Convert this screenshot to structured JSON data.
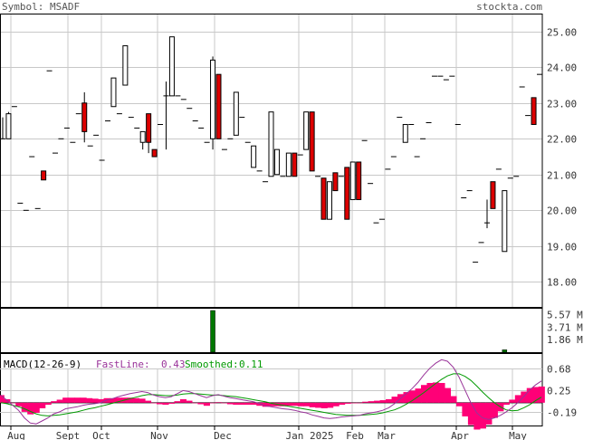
{
  "header": {
    "symbol_label": "Symbol: MSADF",
    "brand": "stockta.com"
  },
  "colors": {
    "up": "#ffffff",
    "down": "#dd0000",
    "grid": "#c8c8c8",
    "volume": "#007700",
    "hist": "#ff0077",
    "fastline": "#993399",
    "smoothed": "#009900"
  },
  "chart_data": [
    {
      "type": "candlestick",
      "panel": "price",
      "y_ticks": [
        "25.00",
        "24.00",
        "23.00",
        "22.00",
        "21.00",
        "20.00",
        "19.00",
        "18.00"
      ],
      "ylim": [
        17.3,
        25.5
      ],
      "x_ticks": [
        "Aug",
        "Sept",
        "Oct",
        "Nov",
        "Dec",
        "Jan 2025",
        "Feb",
        "Mar",
        "Apr",
        "May"
      ],
      "candles": [
        {
          "x": 1,
          "o": 22.0,
          "c": 22.0,
          "h": 22.6,
          "l": 22.0,
          "d": "flat"
        },
        {
          "x": 2,
          "o": 22.0,
          "c": 22.7,
          "h": 22.75,
          "l": 22.0,
          "d": "up"
        },
        {
          "x": 3,
          "o": 22.9,
          "c": 22.9,
          "h": 22.9,
          "l": 22.9,
          "d": "flat"
        },
        {
          "x": 4,
          "o": 20.2,
          "c": 20.2,
          "h": 20.2,
          "l": 20.2,
          "d": "flat"
        },
        {
          "x": 5,
          "o": 20.0,
          "c": 20.0,
          "h": 20.0,
          "l": 20.0,
          "d": "flat"
        },
        {
          "x": 6,
          "o": 21.5,
          "c": 21.5,
          "h": 21.5,
          "l": 21.5,
          "d": "flat"
        },
        {
          "x": 7,
          "o": 20.05,
          "c": 20.05,
          "h": 20.05,
          "l": 20.05,
          "d": "flat"
        },
        {
          "x": 8,
          "o": 21.1,
          "c": 20.85,
          "h": 21.1,
          "l": 20.85,
          "d": "down"
        },
        {
          "x": 9,
          "o": 23.9,
          "c": 23.9,
          "h": 23.9,
          "l": 23.9,
          "d": "flat"
        },
        {
          "x": 10,
          "o": 21.6,
          "c": 21.6,
          "h": 21.6,
          "l": 21.6,
          "d": "flat"
        },
        {
          "x": 11,
          "o": 22.0,
          "c": 22.0,
          "h": 22.0,
          "l": 22.0,
          "d": "flat"
        },
        {
          "x": 12,
          "o": 22.3,
          "c": 22.3,
          "h": 22.3,
          "l": 22.3,
          "d": "flat"
        },
        {
          "x": 13,
          "o": 21.9,
          "c": 21.9,
          "h": 21.9,
          "l": 21.9,
          "d": "flat"
        },
        {
          "x": 14,
          "o": 22.7,
          "c": 22.7,
          "h": 22.7,
          "l": 22.7,
          "d": "flat"
        },
        {
          "x": 15,
          "o": 23.0,
          "c": 22.2,
          "h": 23.3,
          "l": 21.9,
          "d": "down"
        },
        {
          "x": 16,
          "o": 21.8,
          "c": 21.8,
          "h": 21.8,
          "l": 21.8,
          "d": "flat"
        },
        {
          "x": 17,
          "o": 22.1,
          "c": 22.1,
          "h": 22.1,
          "l": 22.1,
          "d": "flat"
        },
        {
          "x": 18,
          "o": 21.4,
          "c": 21.4,
          "h": 21.4,
          "l": 21.4,
          "d": "flat"
        },
        {
          "x": 19,
          "o": 22.5,
          "c": 22.5,
          "h": 22.5,
          "l": 22.5,
          "d": "flat"
        },
        {
          "x": 20,
          "o": 22.9,
          "c": 23.7,
          "h": 23.7,
          "l": 22.9,
          "d": "up"
        },
        {
          "x": 21,
          "o": 22.7,
          "c": 22.7,
          "h": 22.7,
          "l": 22.7,
          "d": "flat"
        },
        {
          "x": 22,
          "o": 23.5,
          "c": 24.6,
          "h": 24.6,
          "l": 23.5,
          "d": "up"
        },
        {
          "x": 23,
          "o": 22.6,
          "c": 22.6,
          "h": 22.6,
          "l": 22.6,
          "d": "flat"
        },
        {
          "x": 24,
          "o": 22.3,
          "c": 22.3,
          "h": 22.3,
          "l": 22.3,
          "d": "flat"
        },
        {
          "x": 25,
          "o": 21.9,
          "c": 22.2,
          "h": 22.2,
          "l": 21.7,
          "d": "up"
        },
        {
          "x": 26,
          "o": 22.7,
          "c": 21.9,
          "h": 22.7,
          "l": 21.6,
          "d": "down"
        },
        {
          "x": 27,
          "o": 21.7,
          "c": 21.5,
          "h": 21.7,
          "l": 21.5,
          "d": "down"
        },
        {
          "x": 28,
          "o": 22.4,
          "c": 22.4,
          "h": 22.4,
          "l": 22.4,
          "d": "flat"
        },
        {
          "x": 29,
          "o": 23.2,
          "c": 23.2,
          "h": 23.6,
          "l": 21.7,
          "d": "flat"
        },
        {
          "x": 30,
          "o": 23.2,
          "c": 24.85,
          "h": 24.85,
          "l": 23.2,
          "d": "up"
        },
        {
          "x": 31,
          "o": 23.2,
          "c": 23.2,
          "h": 23.2,
          "l": 23.2,
          "d": "flat"
        },
        {
          "x": 32,
          "o": 23.1,
          "c": 23.1,
          "h": 23.1,
          "l": 23.1,
          "d": "flat"
        },
        {
          "x": 33,
          "o": 22.85,
          "c": 22.85,
          "h": 22.85,
          "l": 22.85,
          "d": "flat"
        },
        {
          "x": 34,
          "o": 22.5,
          "c": 22.5,
          "h": 22.5,
          "l": 22.5,
          "d": "flat"
        },
        {
          "x": 35,
          "o": 22.3,
          "c": 22.3,
          "h": 22.3,
          "l": 22.3,
          "d": "flat"
        },
        {
          "x": 36,
          "o": 21.9,
          "c": 21.9,
          "h": 21.9,
          "l": 21.9,
          "d": "flat"
        },
        {
          "x": 37,
          "o": 24.2,
          "c": 22.0,
          "h": 24.3,
          "l": 21.7,
          "d": "up"
        },
        {
          "x": 38,
          "o": 23.8,
          "c": 22.0,
          "h": 23.8,
          "l": 22.0,
          "d": "down"
        },
        {
          "x": 39,
          "o": 21.7,
          "c": 21.7,
          "h": 21.7,
          "l": 21.7,
          "d": "flat"
        },
        {
          "x": 40,
          "o": 22.0,
          "c": 22.0,
          "h": 22.0,
          "l": 22.0,
          "d": "flat"
        },
        {
          "x": 41,
          "o": 22.1,
          "c": 23.3,
          "h": 23.3,
          "l": 22.1,
          "d": "up"
        },
        {
          "x": 42,
          "o": 22.6,
          "c": 22.6,
          "h": 22.6,
          "l": 22.6,
          "d": "flat"
        },
        {
          "x": 43,
          "o": 21.9,
          "c": 21.9,
          "h": 21.9,
          "l": 21.9,
          "d": "flat"
        },
        {
          "x": 44,
          "o": 21.2,
          "c": 21.8,
          "h": 21.8,
          "l": 21.2,
          "d": "up"
        },
        {
          "x": 45,
          "o": 21.1,
          "c": 21.1,
          "h": 21.1,
          "l": 21.1,
          "d": "flat"
        },
        {
          "x": 46,
          "o": 20.8,
          "c": 20.8,
          "h": 20.8,
          "l": 20.8,
          "d": "flat"
        },
        {
          "x": 47,
          "o": 20.95,
          "c": 22.75,
          "h": 22.75,
          "l": 20.95,
          "d": "up"
        },
        {
          "x": 48,
          "o": 21.0,
          "c": 21.7,
          "h": 21.7,
          "l": 21.0,
          "d": "up"
        },
        {
          "x": 49,
          "o": 20.95,
          "c": 20.95,
          "h": 20.95,
          "l": 20.95,
          "d": "flat"
        },
        {
          "x": 50,
          "o": 20.95,
          "c": 21.6,
          "h": 21.6,
          "l": 20.95,
          "d": "up"
        },
        {
          "x": 51,
          "o": 21.6,
          "c": 20.95,
          "h": 21.6,
          "l": 20.95,
          "d": "down"
        },
        {
          "x": 52,
          "o": 21.55,
          "c": 21.55,
          "h": 21.55,
          "l": 21.55,
          "d": "flat"
        },
        {
          "x": 53,
          "o": 21.7,
          "c": 22.75,
          "h": 22.75,
          "l": 21.7,
          "d": "up"
        },
        {
          "x": 54,
          "o": 22.75,
          "c": 21.1,
          "h": 22.75,
          "l": 21.1,
          "d": "down"
        },
        {
          "x": 55,
          "o": 20.95,
          "c": 20.95,
          "h": 20.95,
          "l": 20.95,
          "d": "flat"
        },
        {
          "x": 56,
          "o": 20.9,
          "c": 19.75,
          "h": 20.9,
          "l": 19.75,
          "d": "down"
        },
        {
          "x": 57,
          "o": 19.75,
          "c": 20.8,
          "h": 20.8,
          "l": 19.75,
          "d": "up"
        },
        {
          "x": 58,
          "o": 21.05,
          "c": 20.55,
          "h": 21.05,
          "l": 20.55,
          "d": "down"
        },
        {
          "x": 59,
          "o": 20.95,
          "c": 20.95,
          "h": 20.95,
          "l": 20.95,
          "d": "flat"
        },
        {
          "x": 60,
          "o": 21.2,
          "c": 19.75,
          "h": 21.2,
          "l": 19.75,
          "d": "down"
        },
        {
          "x": 61,
          "o": 20.3,
          "c": 21.35,
          "h": 21.35,
          "l": 20.3,
          "d": "up"
        },
        {
          "x": 62,
          "o": 21.35,
          "c": 20.3,
          "h": 21.35,
          "l": 20.3,
          "d": "down"
        },
        {
          "x": 63,
          "o": 21.95,
          "c": 21.95,
          "h": 21.95,
          "l": 21.95,
          "d": "flat"
        },
        {
          "x": 64,
          "o": 20.75,
          "c": 20.75,
          "h": 20.75,
          "l": 20.75,
          "d": "flat"
        },
        {
          "x": 65,
          "o": 19.65,
          "c": 19.65,
          "h": 19.65,
          "l": 19.65,
          "d": "flat"
        },
        {
          "x": 66,
          "o": 19.75,
          "c": 19.75,
          "h": 19.75,
          "l": 19.75,
          "d": "flat"
        },
        {
          "x": 67,
          "o": 21.15,
          "c": 21.15,
          "h": 21.15,
          "l": 21.15,
          "d": "flat"
        },
        {
          "x": 68,
          "o": 21.5,
          "c": 21.5,
          "h": 21.5,
          "l": 21.5,
          "d": "flat"
        },
        {
          "x": 69,
          "o": 22.6,
          "c": 22.6,
          "h": 22.6,
          "l": 22.6,
          "d": "flat"
        },
        {
          "x": 70,
          "o": 21.9,
          "c": 22.4,
          "h": 22.4,
          "l": 21.9,
          "d": "up"
        },
        {
          "x": 71,
          "o": 22.4,
          "c": 22.4,
          "h": 22.4,
          "l": 22.4,
          "d": "flat"
        },
        {
          "x": 72,
          "o": 21.5,
          "c": 21.5,
          "h": 21.5,
          "l": 21.5,
          "d": "flat"
        },
        {
          "x": 73,
          "o": 22.0,
          "c": 22.0,
          "h": 22.0,
          "l": 22.0,
          "d": "flat"
        },
        {
          "x": 74,
          "o": 22.45,
          "c": 22.45,
          "h": 22.45,
          "l": 22.45,
          "d": "flat"
        },
        {
          "x": 75,
          "o": 23.75,
          "c": 23.75,
          "h": 23.75,
          "l": 23.75,
          "d": "flat"
        },
        {
          "x": 76,
          "o": 23.75,
          "c": 23.75,
          "h": 23.75,
          "l": 23.75,
          "d": "flat"
        },
        {
          "x": 77,
          "o": 23.65,
          "c": 23.65,
          "h": 23.65,
          "l": 23.65,
          "d": "flat"
        },
        {
          "x": 78,
          "o": 23.75,
          "c": 23.75,
          "h": 23.75,
          "l": 23.75,
          "d": "flat"
        },
        {
          "x": 79,
          "o": 22.4,
          "c": 22.4,
          "h": 22.4,
          "l": 22.4,
          "d": "flat"
        },
        {
          "x": 80,
          "o": 20.35,
          "c": 20.35,
          "h": 20.35,
          "l": 20.35,
          "d": "flat"
        },
        {
          "x": 81,
          "o": 20.55,
          "c": 20.55,
          "h": 20.55,
          "l": 20.55,
          "d": "flat"
        },
        {
          "x": 82,
          "o": 18.55,
          "c": 18.55,
          "h": 18.55,
          "l": 18.55,
          "d": "flat"
        },
        {
          "x": 83,
          "o": 19.1,
          "c": 19.1,
          "h": 19.1,
          "l": 19.1,
          "d": "flat"
        },
        {
          "x": 84,
          "o": 19.65,
          "c": 19.65,
          "h": 20.3,
          "l": 19.5,
          "d": "flat"
        },
        {
          "x": 85,
          "o": 20.8,
          "c": 20.05,
          "h": 20.8,
          "l": 20.05,
          "d": "down"
        },
        {
          "x": 86,
          "o": 21.15,
          "c": 21.15,
          "h": 21.15,
          "l": 21.15,
          "d": "flat"
        },
        {
          "x": 87,
          "o": 18.85,
          "c": 20.55,
          "h": 20.55,
          "l": 18.85,
          "d": "up"
        },
        {
          "x": 88,
          "o": 20.9,
          "c": 20.9,
          "h": 20.9,
          "l": 20.9,
          "d": "flat"
        },
        {
          "x": 89,
          "o": 20.95,
          "c": 20.95,
          "h": 20.95,
          "l": 20.95,
          "d": "flat"
        },
        {
          "x": 90,
          "o": 23.45,
          "c": 23.45,
          "h": 23.45,
          "l": 23.45,
          "d": "flat"
        },
        {
          "x": 91,
          "o": 22.65,
          "c": 22.65,
          "h": 22.65,
          "l": 22.65,
          "d": "flat"
        },
        {
          "x": 92,
          "o": 23.15,
          "c": 22.4,
          "h": 23.15,
          "l": 22.4,
          "d": "down"
        },
        {
          "x": 93,
          "o": 23.8,
          "c": 23.8,
          "h": 23.8,
          "l": 23.8,
          "d": "flat"
        }
      ]
    },
    {
      "type": "bar",
      "panel": "volume",
      "y_ticks": [
        "5.57 M",
        "3.71 M",
        "1.86 M"
      ],
      "ylim": [
        0,
        6.6
      ],
      "bars": [
        {
          "x": 37,
          "v": 6.2
        },
        {
          "x": 87,
          "v": 0.35
        }
      ]
    },
    {
      "type": "line",
      "panel": "macd",
      "title": "MACD(12-26-9)",
      "fast_label": "FastLine:",
      "fast_value": "0.43",
      "smooth_label": "Smoothed:",
      "smooth_value": "0.11",
      "y_ticks": [
        "0.68",
        "0.25",
        "-0.19"
      ],
      "ylim": [
        -0.45,
        0.98
      ],
      "fast": [
        0.15,
        0.05,
        -0.05,
        -0.15,
        -0.3,
        -0.4,
        -0.42,
        -0.36,
        -0.3,
        -0.22,
        -0.18,
        -0.12,
        -0.1,
        -0.08,
        -0.05,
        -0.03,
        -0.02,
        0.0,
        0.05,
        0.08,
        0.12,
        0.15,
        0.18,
        0.2,
        0.22,
        0.2,
        0.15,
        0.12,
        0.1,
        0.12,
        0.18,
        0.24,
        0.22,
        0.18,
        0.14,
        0.1,
        0.14,
        0.16,
        0.13,
        0.1,
        0.08,
        0.06,
        0.04,
        0.02,
        -0.02,
        -0.06,
        -0.08,
        -0.1,
        -0.12,
        -0.13,
        -0.15,
        -0.18,
        -0.2,
        -0.24,
        -0.27,
        -0.3,
        -0.31,
        -0.3,
        -0.28,
        -0.27,
        -0.26,
        -0.25,
        -0.22,
        -0.2,
        -0.18,
        -0.15,
        -0.1,
        -0.02,
        0.08,
        0.18,
        0.28,
        0.4,
        0.55,
        0.68,
        0.78,
        0.85,
        0.82,
        0.7,
        0.5,
        0.25,
        0.0,
        -0.2,
        -0.3,
        -0.33,
        -0.3,
        -0.25,
        -0.18,
        -0.1,
        0.0,
        0.12,
        0.25,
        0.35,
        0.43
      ],
      "smoothed": [
        0.0,
        -0.02,
        -0.05,
        -0.08,
        -0.12,
        -0.17,
        -0.22,
        -0.25,
        -0.26,
        -0.25,
        -0.24,
        -0.22,
        -0.2,
        -0.18,
        -0.15,
        -0.12,
        -0.1,
        -0.07,
        -0.04,
        -0.01,
        0.02,
        0.05,
        0.08,
        0.11,
        0.14,
        0.16,
        0.16,
        0.15,
        0.14,
        0.14,
        0.15,
        0.17,
        0.18,
        0.18,
        0.17,
        0.16,
        0.15,
        0.15,
        0.14,
        0.13,
        0.12,
        0.1,
        0.08,
        0.06,
        0.04,
        0.02,
        -0.01,
        -0.03,
        -0.05,
        -0.07,
        -0.09,
        -0.11,
        -0.13,
        -0.15,
        -0.17,
        -0.19,
        -0.21,
        -0.23,
        -0.24,
        -0.25,
        -0.25,
        -0.25,
        -0.24,
        -0.23,
        -0.22,
        -0.2,
        -0.17,
        -0.14,
        -0.09,
        -0.03,
        0.04,
        0.12,
        0.2,
        0.29,
        0.38,
        0.46,
        0.53,
        0.57,
        0.57,
        0.52,
        0.44,
        0.33,
        0.21,
        0.1,
        0.0,
        -0.08,
        -0.14,
        -0.16,
        -0.15,
        -0.1,
        -0.04,
        0.04,
        0.11
      ]
    }
  ]
}
